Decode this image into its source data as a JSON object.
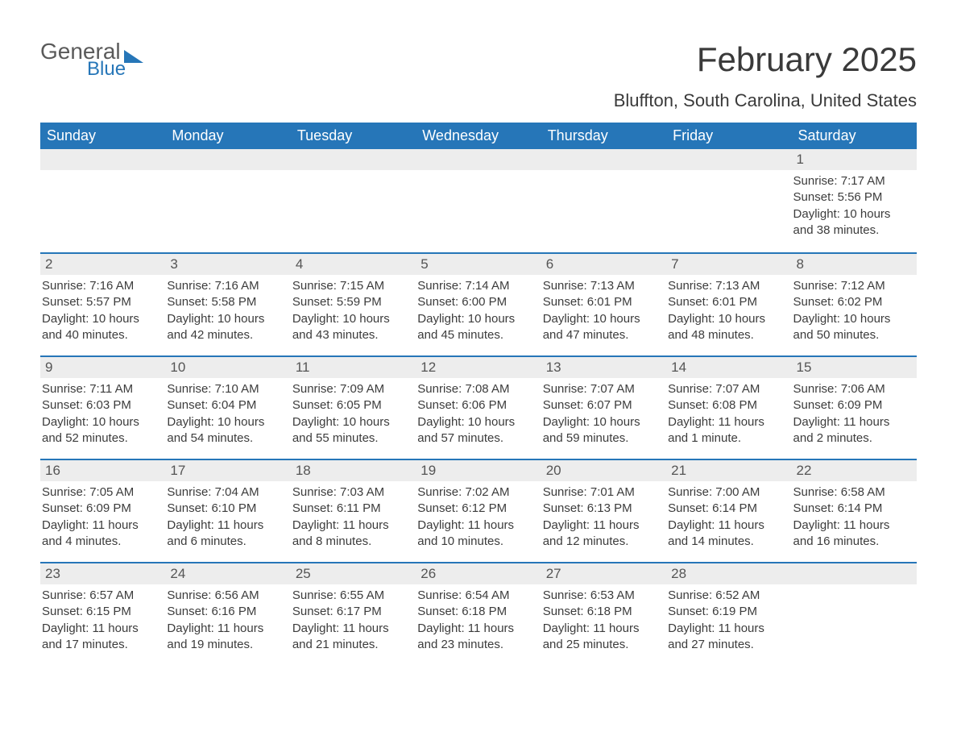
{
  "brand": {
    "word1": "General",
    "word2": "Blue"
  },
  "title": "February 2025",
  "location": "Bluffton, South Carolina, United States",
  "colors": {
    "header_bg": "#2676b8",
    "header_text": "#ffffff",
    "daynum_bg": "#ededed",
    "accent_border": "#2676b8",
    "body_text": "#3c3c3c",
    "page_bg": "#ffffff"
  },
  "typography": {
    "title_fontsize_pt": 32,
    "location_fontsize_pt": 17,
    "header_fontsize_pt": 14,
    "body_fontsize_pt": 11
  },
  "calendar": {
    "type": "table",
    "columns": [
      "Sunday",
      "Monday",
      "Tuesday",
      "Wednesday",
      "Thursday",
      "Friday",
      "Saturday"
    ],
    "weeks": [
      [
        null,
        null,
        null,
        null,
        null,
        null,
        {
          "day": "1",
          "sunrise": "Sunrise: 7:17 AM",
          "sunset": "Sunset: 5:56 PM",
          "daylight": "Daylight: 10 hours and 38 minutes."
        }
      ],
      [
        {
          "day": "2",
          "sunrise": "Sunrise: 7:16 AM",
          "sunset": "Sunset: 5:57 PM",
          "daylight": "Daylight: 10 hours and 40 minutes."
        },
        {
          "day": "3",
          "sunrise": "Sunrise: 7:16 AM",
          "sunset": "Sunset: 5:58 PM",
          "daylight": "Daylight: 10 hours and 42 minutes."
        },
        {
          "day": "4",
          "sunrise": "Sunrise: 7:15 AM",
          "sunset": "Sunset: 5:59 PM",
          "daylight": "Daylight: 10 hours and 43 minutes."
        },
        {
          "day": "5",
          "sunrise": "Sunrise: 7:14 AM",
          "sunset": "Sunset: 6:00 PM",
          "daylight": "Daylight: 10 hours and 45 minutes."
        },
        {
          "day": "6",
          "sunrise": "Sunrise: 7:13 AM",
          "sunset": "Sunset: 6:01 PM",
          "daylight": "Daylight: 10 hours and 47 minutes."
        },
        {
          "day": "7",
          "sunrise": "Sunrise: 7:13 AM",
          "sunset": "Sunset: 6:01 PM",
          "daylight": "Daylight: 10 hours and 48 minutes."
        },
        {
          "day": "8",
          "sunrise": "Sunrise: 7:12 AM",
          "sunset": "Sunset: 6:02 PM",
          "daylight": "Daylight: 10 hours and 50 minutes."
        }
      ],
      [
        {
          "day": "9",
          "sunrise": "Sunrise: 7:11 AM",
          "sunset": "Sunset: 6:03 PM",
          "daylight": "Daylight: 10 hours and 52 minutes."
        },
        {
          "day": "10",
          "sunrise": "Sunrise: 7:10 AM",
          "sunset": "Sunset: 6:04 PM",
          "daylight": "Daylight: 10 hours and 54 minutes."
        },
        {
          "day": "11",
          "sunrise": "Sunrise: 7:09 AM",
          "sunset": "Sunset: 6:05 PM",
          "daylight": "Daylight: 10 hours and 55 minutes."
        },
        {
          "day": "12",
          "sunrise": "Sunrise: 7:08 AM",
          "sunset": "Sunset: 6:06 PM",
          "daylight": "Daylight: 10 hours and 57 minutes."
        },
        {
          "day": "13",
          "sunrise": "Sunrise: 7:07 AM",
          "sunset": "Sunset: 6:07 PM",
          "daylight": "Daylight: 10 hours and 59 minutes."
        },
        {
          "day": "14",
          "sunrise": "Sunrise: 7:07 AM",
          "sunset": "Sunset: 6:08 PM",
          "daylight": "Daylight: 11 hours and 1 minute."
        },
        {
          "day": "15",
          "sunrise": "Sunrise: 7:06 AM",
          "sunset": "Sunset: 6:09 PM",
          "daylight": "Daylight: 11 hours and 2 minutes."
        }
      ],
      [
        {
          "day": "16",
          "sunrise": "Sunrise: 7:05 AM",
          "sunset": "Sunset: 6:09 PM",
          "daylight": "Daylight: 11 hours and 4 minutes."
        },
        {
          "day": "17",
          "sunrise": "Sunrise: 7:04 AM",
          "sunset": "Sunset: 6:10 PM",
          "daylight": "Daylight: 11 hours and 6 minutes."
        },
        {
          "day": "18",
          "sunrise": "Sunrise: 7:03 AM",
          "sunset": "Sunset: 6:11 PM",
          "daylight": "Daylight: 11 hours and 8 minutes."
        },
        {
          "day": "19",
          "sunrise": "Sunrise: 7:02 AM",
          "sunset": "Sunset: 6:12 PM",
          "daylight": "Daylight: 11 hours and 10 minutes."
        },
        {
          "day": "20",
          "sunrise": "Sunrise: 7:01 AM",
          "sunset": "Sunset: 6:13 PM",
          "daylight": "Daylight: 11 hours and 12 minutes."
        },
        {
          "day": "21",
          "sunrise": "Sunrise: 7:00 AM",
          "sunset": "Sunset: 6:14 PM",
          "daylight": "Daylight: 11 hours and 14 minutes."
        },
        {
          "day": "22",
          "sunrise": "Sunrise: 6:58 AM",
          "sunset": "Sunset: 6:14 PM",
          "daylight": "Daylight: 11 hours and 16 minutes."
        }
      ],
      [
        {
          "day": "23",
          "sunrise": "Sunrise: 6:57 AM",
          "sunset": "Sunset: 6:15 PM",
          "daylight": "Daylight: 11 hours and 17 minutes."
        },
        {
          "day": "24",
          "sunrise": "Sunrise: 6:56 AM",
          "sunset": "Sunset: 6:16 PM",
          "daylight": "Daylight: 11 hours and 19 minutes."
        },
        {
          "day": "25",
          "sunrise": "Sunrise: 6:55 AM",
          "sunset": "Sunset: 6:17 PM",
          "daylight": "Daylight: 11 hours and 21 minutes."
        },
        {
          "day": "26",
          "sunrise": "Sunrise: 6:54 AM",
          "sunset": "Sunset: 6:18 PM",
          "daylight": "Daylight: 11 hours and 23 minutes."
        },
        {
          "day": "27",
          "sunrise": "Sunrise: 6:53 AM",
          "sunset": "Sunset: 6:18 PM",
          "daylight": "Daylight: 11 hours and 25 minutes."
        },
        {
          "day": "28",
          "sunrise": "Sunrise: 6:52 AM",
          "sunset": "Sunset: 6:19 PM",
          "daylight": "Daylight: 11 hours and 27 minutes."
        },
        null
      ]
    ]
  }
}
